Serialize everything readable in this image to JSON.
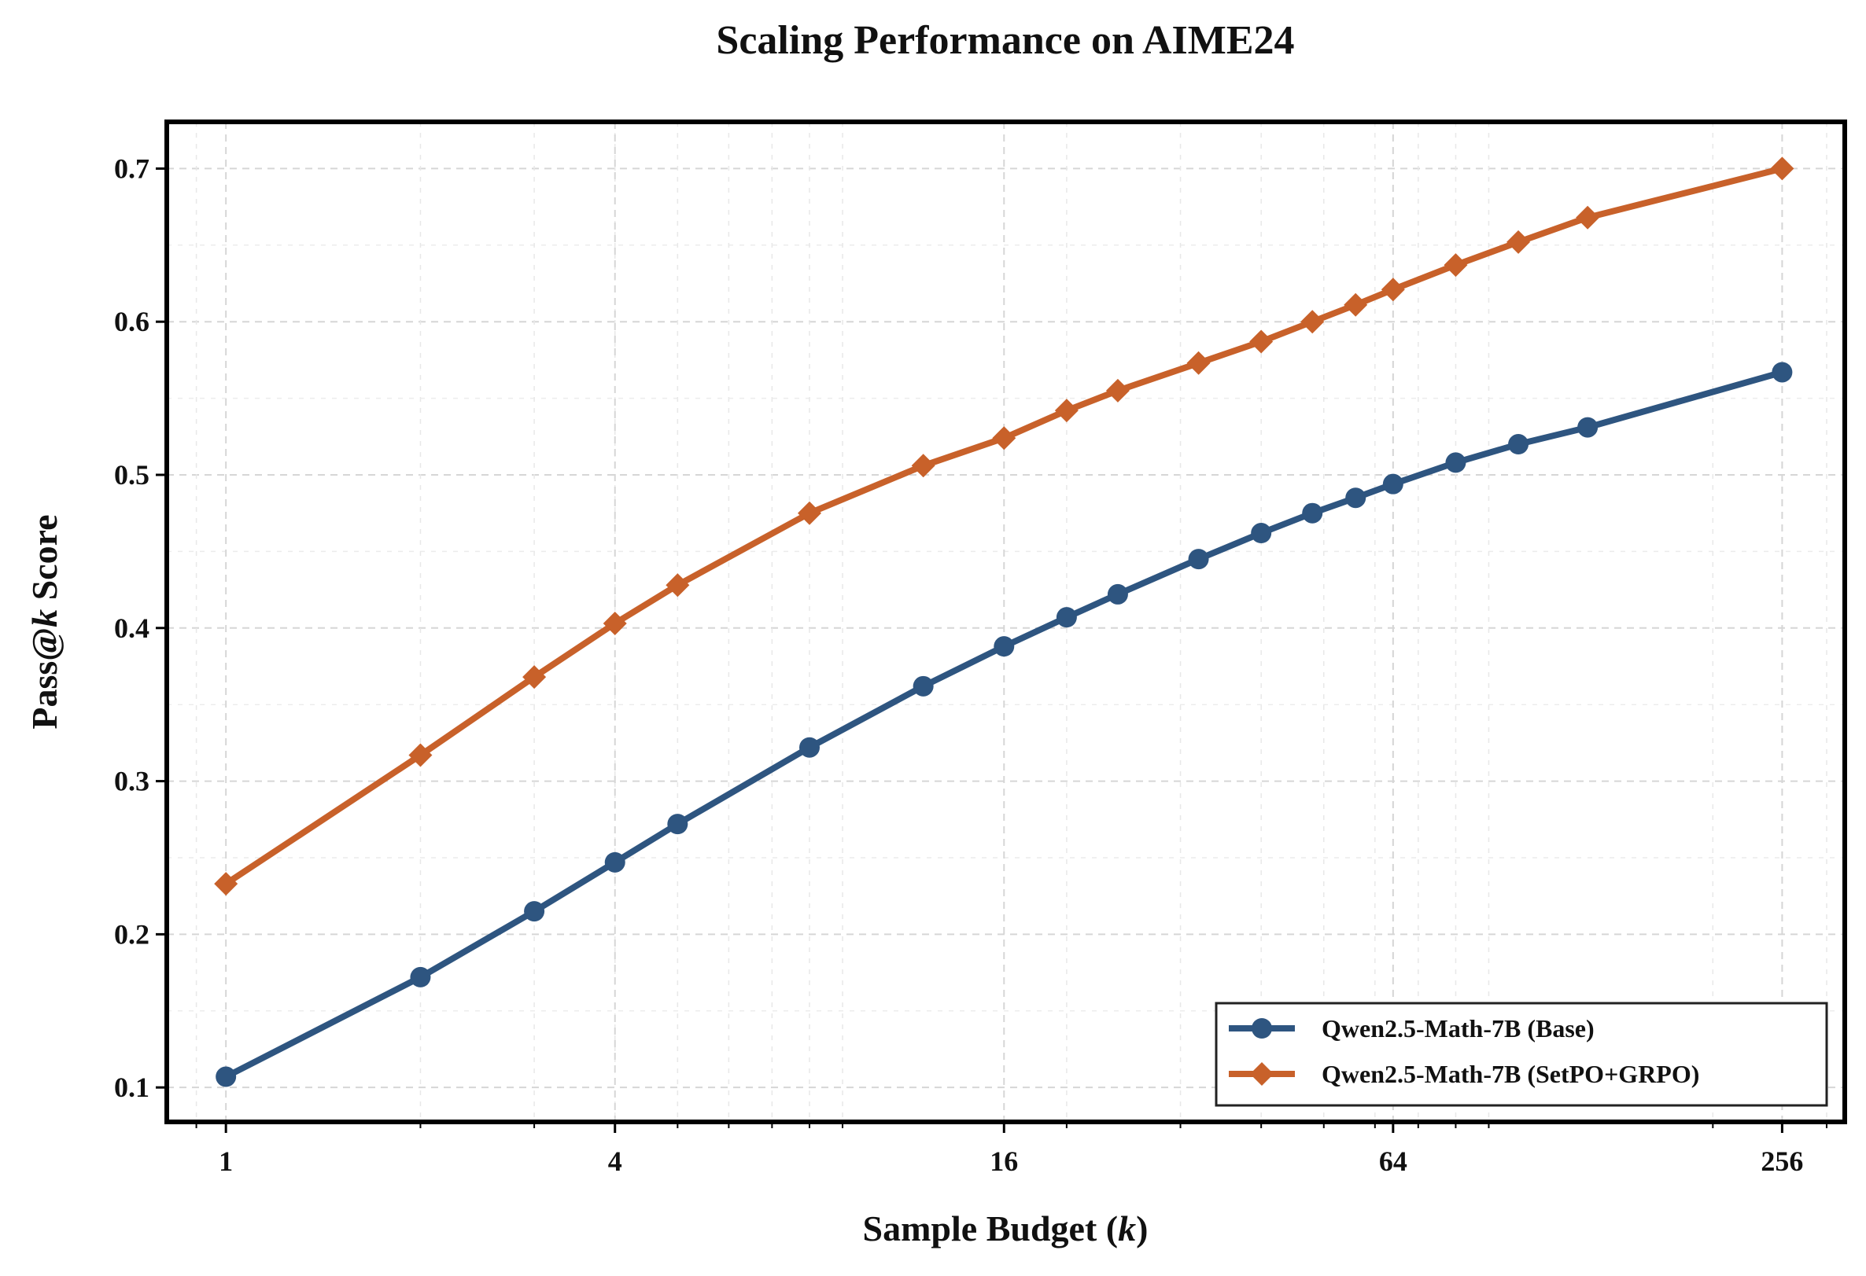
{
  "chart_data": {
    "type": "line",
    "title": "Scaling Performance on AIME24",
    "xlabel": "Sample Budget (k)",
    "xlabel_parts": [
      "Sample Budget (",
      "k",
      ")"
    ],
    "ylabel": "Pass@k Score",
    "ylabel_parts": [
      "Pass@",
      "k",
      " Score"
    ],
    "xscale": "log2",
    "xlim": [
      0.81,
      320
    ],
    "ylim": [
      0.0775,
      0.7305
    ],
    "x_ticks": [
      1,
      4,
      16,
      64,
      256
    ],
    "x_tick_labels": [
      "1",
      "4",
      "16",
      "64",
      "256"
    ],
    "y_ticks": [
      0.1,
      0.2,
      0.3,
      0.4,
      0.5,
      0.6,
      0.7
    ],
    "y_tick_labels": [
      "0.1",
      "0.2",
      "0.3",
      "0.4",
      "0.5",
      "0.6",
      "0.7"
    ],
    "grid": true,
    "legend_position": "bottom-right",
    "series": [
      {
        "name": "Qwen2.5-Math-7B (Base)",
        "color": "#2e5580",
        "marker": "circle",
        "x": [
          1,
          2,
          3,
          4,
          5,
          8,
          12,
          16,
          20,
          24,
          32,
          40,
          48,
          56,
          64,
          80,
          100,
          128,
          256
        ],
        "values": [
          0.107,
          0.172,
          0.215,
          0.247,
          0.272,
          0.322,
          0.362,
          0.388,
          0.407,
          0.422,
          0.445,
          0.462,
          0.475,
          0.485,
          0.494,
          0.508,
          0.52,
          0.531,
          0.567
        ]
      },
      {
        "name": "Qwen2.5-Math-7B (SetPO+GRPO)",
        "color": "#c8612a",
        "marker": "diamond",
        "x": [
          1,
          2,
          3,
          4,
          5,
          8,
          12,
          16,
          20,
          24,
          32,
          40,
          48,
          56,
          64,
          80,
          100,
          128,
          256
        ],
        "values": [
          0.233,
          0.317,
          0.368,
          0.403,
          0.428,
          0.475,
          0.506,
          0.524,
          0.542,
          0.555,
          0.573,
          0.587,
          0.6,
          0.611,
          0.621,
          0.637,
          0.652,
          0.668,
          0.7
        ]
      }
    ]
  }
}
